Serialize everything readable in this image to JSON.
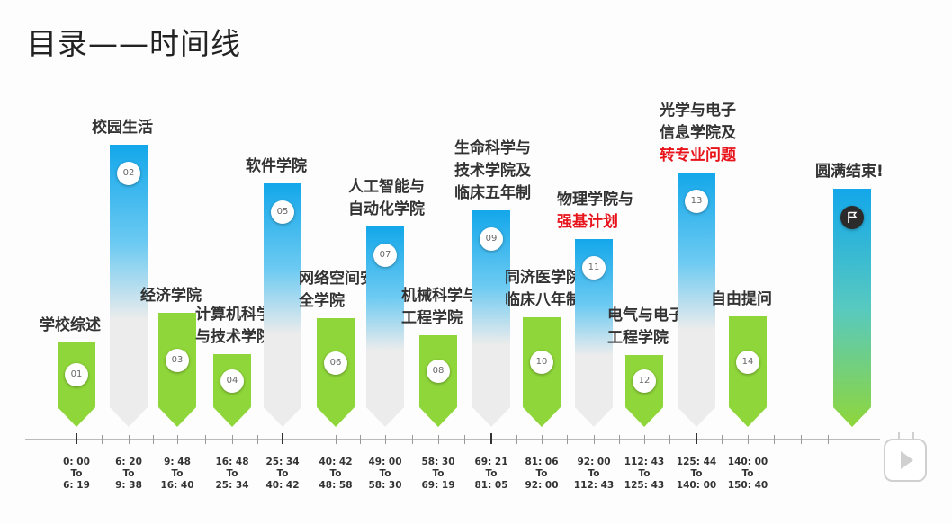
{
  "page": {
    "title": "目录——时间线"
  },
  "colors": {
    "green": "#8fd63a",
    "blue": "#13a7ea",
    "gray": "#ececec",
    "red": "#e8141c"
  },
  "icons": {
    "end": "flag-icon",
    "corner": "play-button-icon"
  },
  "items": [
    {
      "num": "01",
      "label": [
        "学校综述"
      ],
      "time": [
        "0: 00",
        "To",
        "6: 19"
      ],
      "color": "green"
    },
    {
      "num": "02",
      "label": [
        "校园生活"
      ],
      "time": [
        "6: 20",
        "To",
        "9: 38"
      ],
      "color": "blue"
    },
    {
      "num": "03",
      "label": [
        "经济学院"
      ],
      "time": [
        "9: 48",
        "To",
        "16: 40"
      ],
      "color": "green"
    },
    {
      "num": "04",
      "label": [
        "计算机科学",
        "与技术学院"
      ],
      "time": [
        "16: 48",
        "To",
        "25: 34"
      ],
      "color": "green"
    },
    {
      "num": "05",
      "label": [
        "软件学院"
      ],
      "time": [
        "25: 34",
        "To",
        "40: 42"
      ],
      "color": "blue"
    },
    {
      "num": "06",
      "label": [
        "网络空间安",
        "全学院"
      ],
      "time": [
        "40: 42",
        "To",
        "48: 58"
      ],
      "color": "green"
    },
    {
      "num": "07",
      "label": [
        "人工智能与",
        "自动化学院"
      ],
      "time": [
        "49: 00",
        "To",
        "58: 30"
      ],
      "color": "blue"
    },
    {
      "num": "08",
      "label": [
        "机械科学与",
        "工程学院"
      ],
      "time": [
        "58: 30",
        "To",
        "69: 19"
      ],
      "color": "green"
    },
    {
      "num": "09",
      "label": [
        "生命科学与",
        "技术学院及",
        "临床五年制"
      ],
      "time": [
        "69: 21",
        "To",
        "81: 05"
      ],
      "color": "blue"
    },
    {
      "num": "10",
      "label": [
        "同济医学院与",
        "临床八年制"
      ],
      "time": [
        "81: 06",
        "To",
        "92: 00"
      ],
      "color": "green"
    },
    {
      "num": "11",
      "label": [
        "物理学院与",
        "强基计划"
      ],
      "red_line": 1,
      "time": [
        "92: 00",
        "To",
        "112: 43"
      ],
      "color": "blue"
    },
    {
      "num": "12",
      "label": [
        "电气与电子",
        "工程学院"
      ],
      "time": [
        "112: 43",
        "To",
        "125: 43"
      ],
      "color": "green"
    },
    {
      "num": "13",
      "label": [
        "光学与电子",
        "信息学院及",
        "转专业问题"
      ],
      "red_line": 2,
      "time": [
        "125: 44",
        "To",
        "140: 00"
      ],
      "color": "blue"
    },
    {
      "num": "14",
      "label": [
        "自由提问"
      ],
      "time": [
        "140: 00",
        "To",
        "150: 40"
      ],
      "color": "green"
    },
    {
      "num": "",
      "label": [
        "圆满结束!"
      ],
      "time": [],
      "color": "end"
    }
  ]
}
